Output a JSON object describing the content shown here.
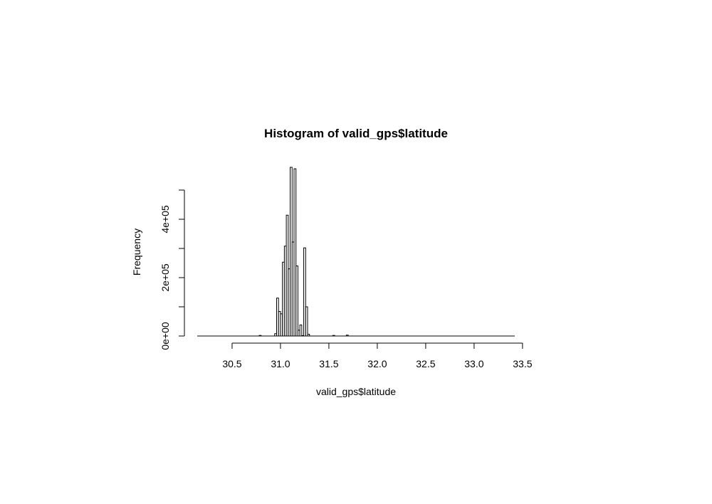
{
  "chart_data": {
    "type": "bar",
    "title": "Histogram of valid_gps$latitude",
    "xlabel": "valid_gps$latitude",
    "ylabel": "Frequency",
    "bin_width": 0.02,
    "xlim": [
      30.14,
      33.42
    ],
    "ylim": [
      0,
      500000
    ],
    "x_ticks": [
      30.5,
      31.0,
      31.5,
      32.0,
      32.5,
      33.0,
      33.5
    ],
    "x_tick_labels": [
      "30.5",
      "31.0",
      "31.5",
      "32.0",
      "32.5",
      "33.0",
      "33.5"
    ],
    "y_ticks": [
      0,
      100000,
      200000,
      300000,
      400000,
      500000
    ],
    "y_tick_labels": [
      "0e+00",
      "",
      "2e+05",
      "",
      "4e+05",
      ""
    ],
    "bin_starts": [
      30.78,
      30.94,
      30.96,
      30.98,
      31.0,
      31.02,
      31.04,
      31.06,
      31.08,
      31.1,
      31.12,
      31.14,
      31.16,
      31.18,
      31.2,
      31.22,
      31.24,
      31.26,
      31.28,
      31.54,
      31.68
    ],
    "counts": [
      2000,
      8000,
      130000,
      84000,
      76000,
      253000,
      308000,
      414000,
      230000,
      578000,
      322000,
      573000,
      240000,
      20000,
      38000,
      0,
      302000,
      100000,
      6000,
      2000,
      3000
    ],
    "grid": false,
    "legend": "none"
  }
}
